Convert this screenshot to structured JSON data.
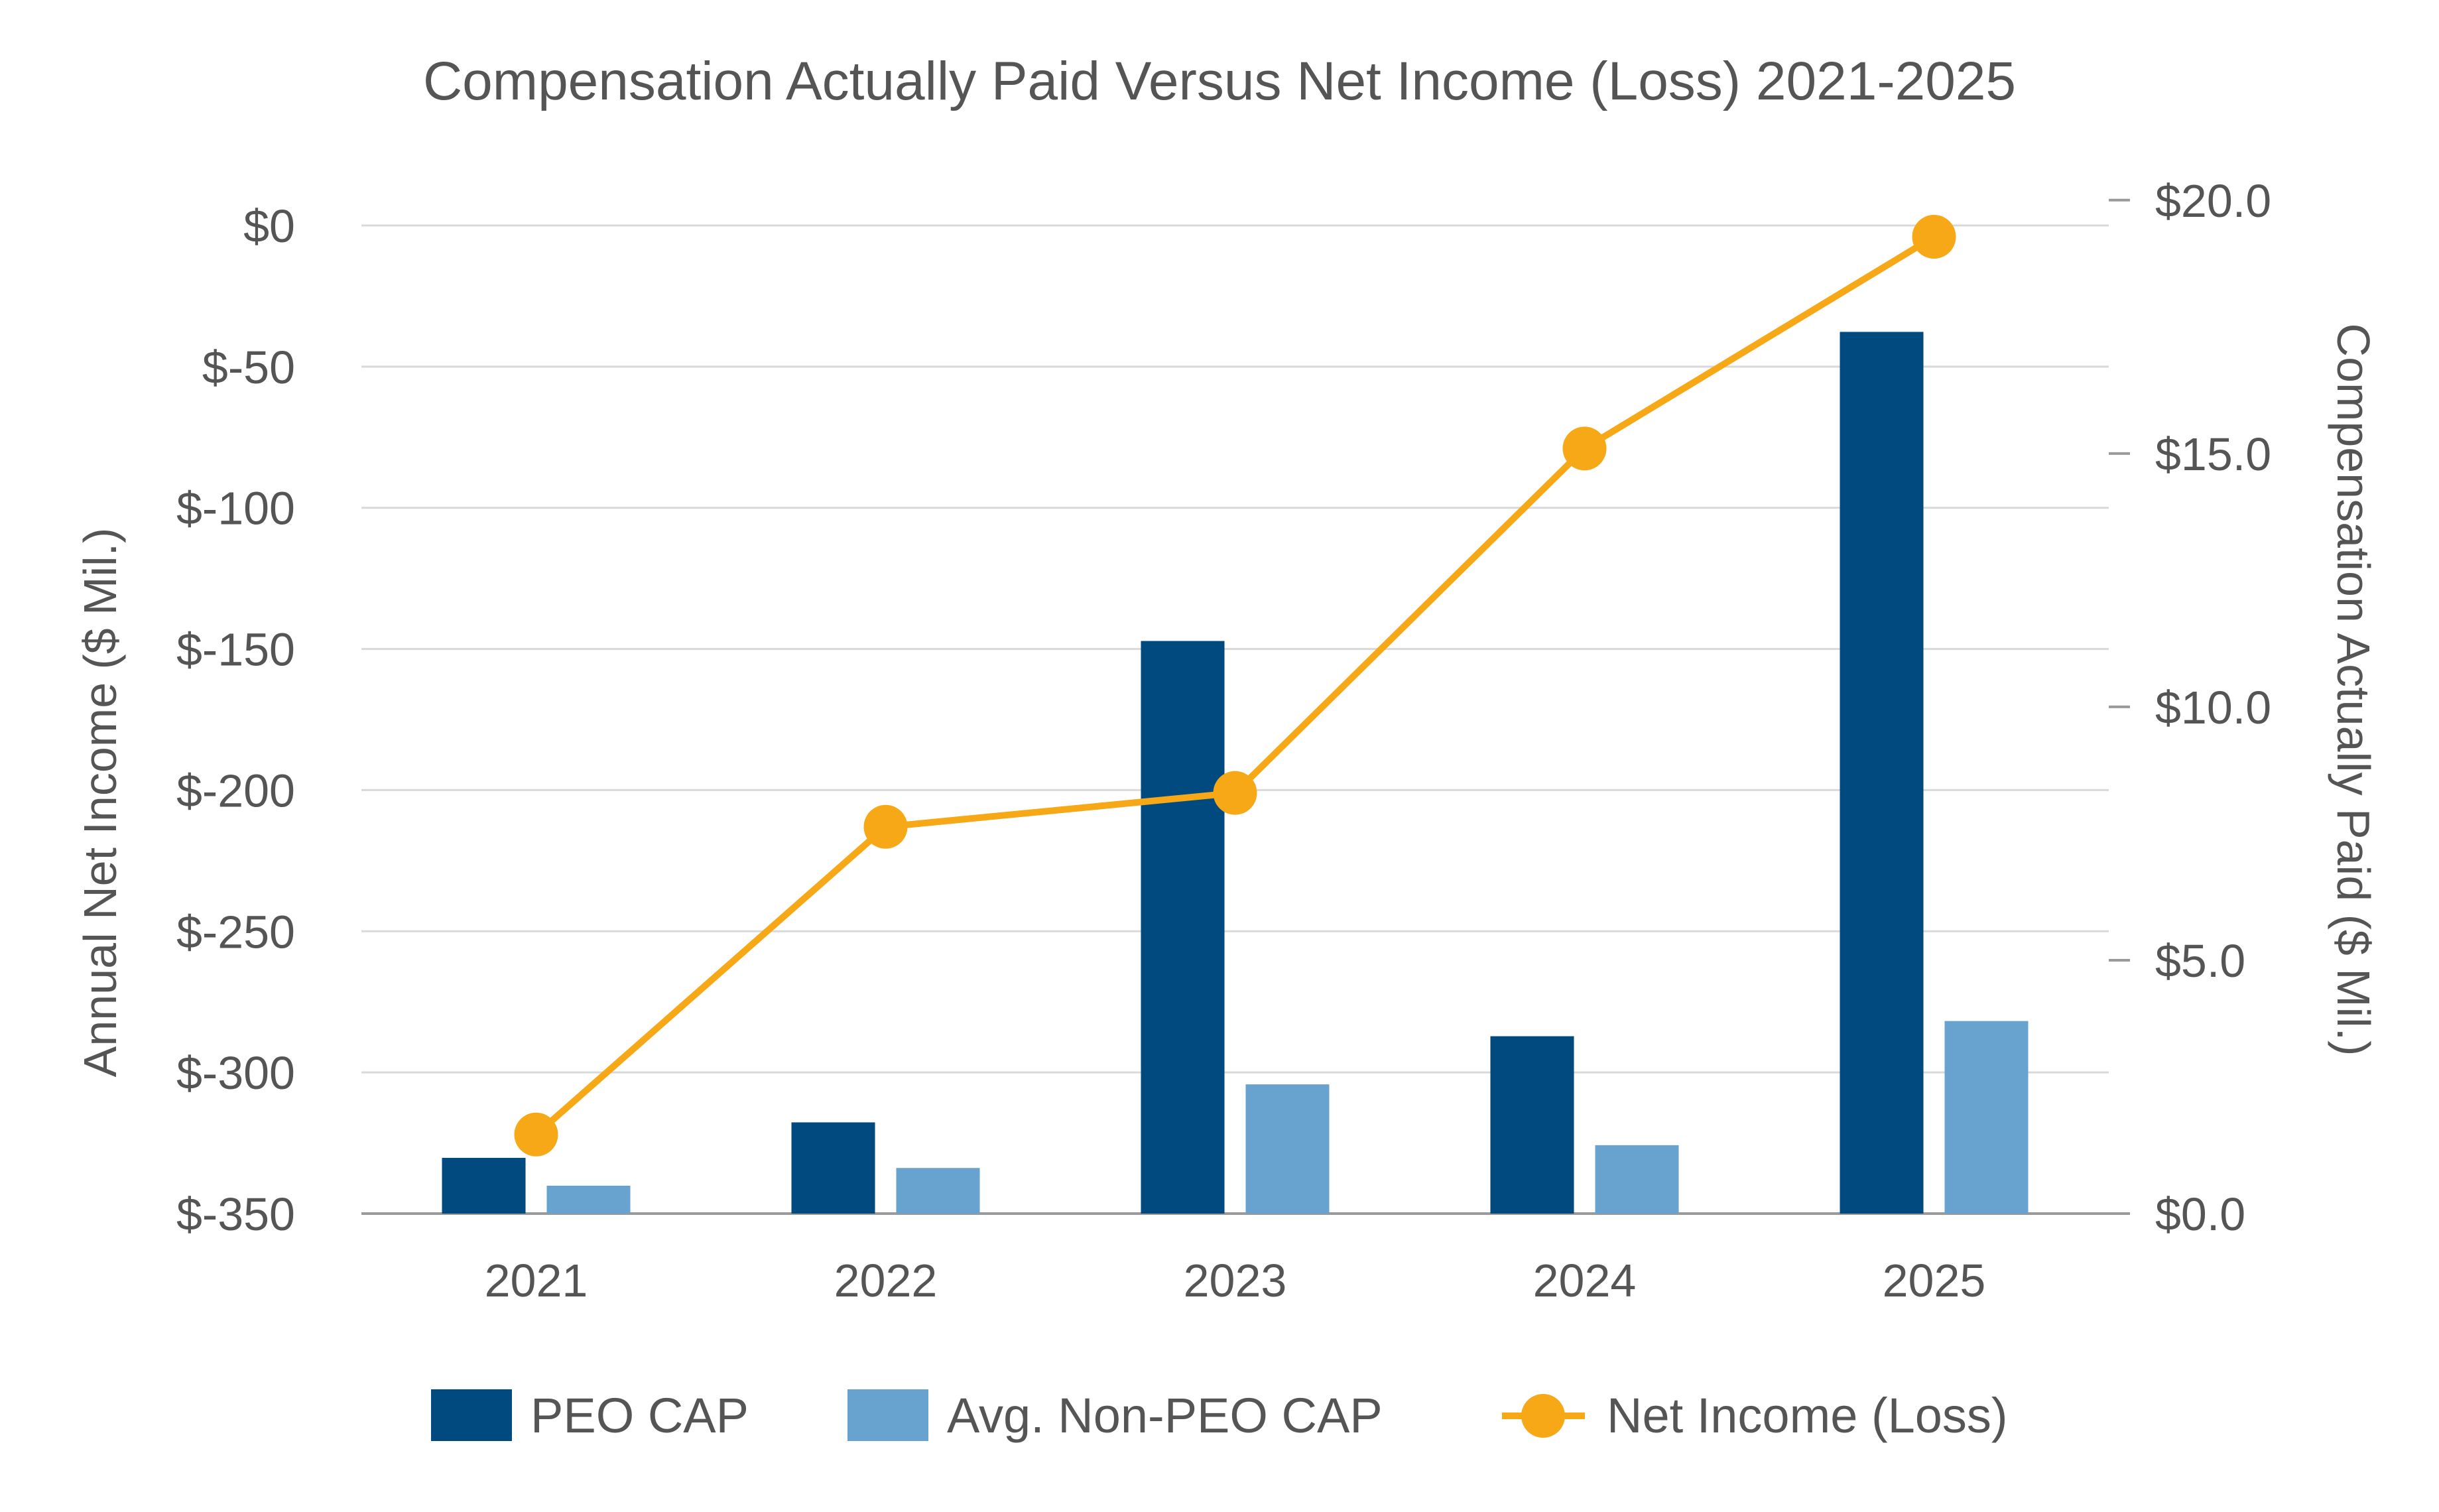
{
  "chart_data": {
    "type": "bar+line",
    "title": "Compensation Actually Paid Versus Net Income (Loss) 2021-2025",
    "categories": [
      "2021",
      "2022",
      "2023",
      "2024",
      "2025"
    ],
    "left_axis": {
      "label": "Annual Net Income ($ Mil.)",
      "range": [
        -350,
        0
      ],
      "ticks": [
        0,
        -50,
        -100,
        -150,
        -200,
        -250,
        -300,
        -350
      ],
      "tick_labels": [
        "$0",
        "$-50",
        "$-100",
        "$-150",
        "$-200",
        "$-250",
        "$-300",
        "$-350"
      ]
    },
    "right_axis": {
      "label": "Compensation Actually Paid ($ Mil.)",
      "range": [
        0,
        19.5
      ],
      "ticks": [
        20,
        15,
        10,
        5,
        0
      ],
      "tick_labels": [
        "$20.0",
        "$15.0",
        "$10.0",
        "$5.0",
        "$0.0"
      ]
    },
    "series": [
      {
        "name": "PEO CAP",
        "type": "bar",
        "axis": "right",
        "color": "#004a7f",
        "values": [
          1.1,
          1.8,
          11.3,
          3.5,
          17.4
        ]
      },
      {
        "name": "Avg. Non-PEO CAP",
        "type": "bar",
        "axis": "right",
        "color": "#68a2cf",
        "values": [
          0.55,
          0.9,
          2.55,
          1.35,
          3.8
        ]
      },
      {
        "name": "Net Income (Loss)",
        "type": "line",
        "axis": "left",
        "color": "#f6a817",
        "values": [
          -322,
          -213,
          -201,
          -79,
          -4
        ]
      }
    ],
    "legend": {
      "position": "bottom",
      "items": [
        "PEO CAP",
        "Avg. Non-PEO CAP",
        "Net Income (Loss)"
      ]
    },
    "grid": true
  }
}
